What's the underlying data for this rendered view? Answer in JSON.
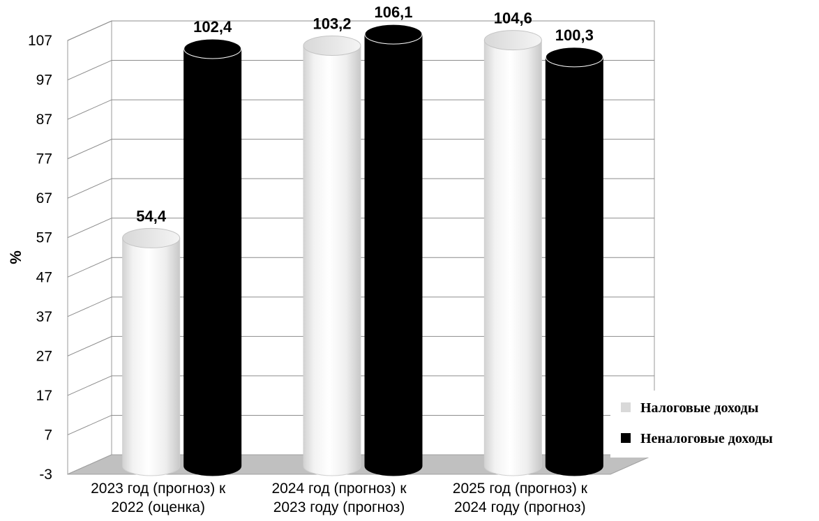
{
  "chart_data": {
    "type": "bar",
    "style": "3d-cylinder",
    "ylabel": "%",
    "ylim": [
      -3,
      107
    ],
    "yticks": [
      -3,
      7,
      17,
      27,
      37,
      47,
      57,
      67,
      77,
      87,
      97,
      107
    ],
    "grid": true,
    "legend_position": "right",
    "categories": [
      [
        "2023 год (прогноз) к",
        "2022 (оценка)"
      ],
      [
        "2024 год (прогноз) к",
        "2023 году (прогноз)"
      ],
      [
        "2025 год (прогноз) к",
        "2024 году (прогноз)"
      ]
    ],
    "series": [
      {
        "name": "Налоговые доходы",
        "color": "#e6e6e6",
        "values": [
          54.4,
          103.2,
          104.6
        ],
        "labels": [
          "54,4",
          "103,2",
          "104,6"
        ]
      },
      {
        "name": "Неналоговые доходы",
        "color": "#000000",
        "values": [
          102.4,
          106.1,
          100.3
        ],
        "labels": [
          "102,4",
          "106,1",
          "100,3"
        ]
      }
    ]
  }
}
